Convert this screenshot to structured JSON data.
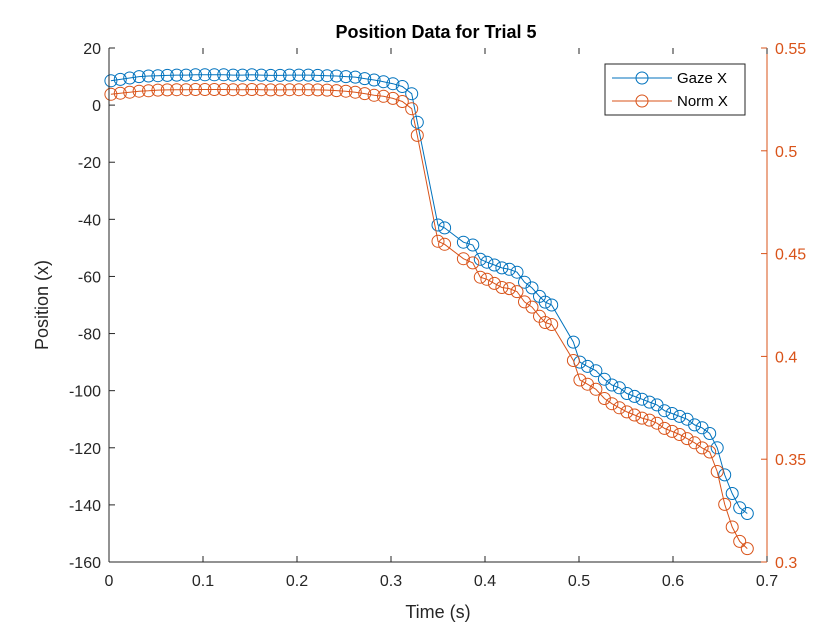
{
  "chart_data": {
    "type": "line",
    "title": "Position Data for Trial 5",
    "xlabel": "Time (s)",
    "ylabel": "Position (x)",
    "y2label": "",
    "xlim": [
      0,
      0.7
    ],
    "ylim": [
      -160,
      20
    ],
    "y2lim": [
      0.3,
      0.55
    ],
    "x_ticks": [
      "0",
      "0.1",
      "0.2",
      "0.3",
      "0.4",
      "0.5",
      "0.6",
      "0.7"
    ],
    "y_ticks": [
      "20",
      "0",
      "-20",
      "-40",
      "-60",
      "-80",
      "-100",
      "-120",
      "-140",
      "-160"
    ],
    "y2_ticks": [
      "0.55",
      "0.5",
      "0.45",
      "0.4",
      "0.35",
      "0.3"
    ],
    "grid": false,
    "legend_position": "top-right",
    "series": [
      {
        "name": "Gaze X",
        "axis": "left",
        "color": "#0072BD",
        "marker": "circle",
        "points": [
          [
            0.002,
            8.5
          ],
          [
            0.012,
            9.0
          ],
          [
            0.022,
            9.5
          ],
          [
            0.032,
            10.0
          ],
          [
            0.042,
            10.2
          ],
          [
            0.052,
            10.3
          ],
          [
            0.062,
            10.4
          ],
          [
            0.072,
            10.5
          ],
          [
            0.082,
            10.5
          ],
          [
            0.092,
            10.6
          ],
          [
            0.102,
            10.6
          ],
          [
            0.112,
            10.6
          ],
          [
            0.122,
            10.6
          ],
          [
            0.132,
            10.5
          ],
          [
            0.142,
            10.5
          ],
          [
            0.152,
            10.6
          ],
          [
            0.162,
            10.5
          ],
          [
            0.172,
            10.4
          ],
          [
            0.182,
            10.4
          ],
          [
            0.192,
            10.5
          ],
          [
            0.202,
            10.5
          ],
          [
            0.212,
            10.5
          ],
          [
            0.222,
            10.4
          ],
          [
            0.232,
            10.3
          ],
          [
            0.242,
            10.2
          ],
          [
            0.252,
            10.0
          ],
          [
            0.262,
            9.8
          ],
          [
            0.272,
            9.3
          ],
          [
            0.282,
            8.8
          ],
          [
            0.292,
            8.2
          ],
          [
            0.302,
            7.5
          ],
          [
            0.312,
            6.5
          ],
          [
            0.322,
            4.0
          ],
          [
            0.328,
            -6.0
          ],
          [
            0.35,
            -42.0
          ],
          [
            0.357,
            -43.0
          ],
          [
            0.377,
            -48.0
          ],
          [
            0.387,
            -49.0
          ],
          [
            0.395,
            -54.0
          ],
          [
            0.402,
            -55.0
          ],
          [
            0.41,
            -56.0
          ],
          [
            0.418,
            -57.0
          ],
          [
            0.426,
            -57.5
          ],
          [
            0.434,
            -58.5
          ],
          [
            0.442,
            -62.0
          ],
          [
            0.45,
            -64.0
          ],
          [
            0.458,
            -67.0
          ],
          [
            0.464,
            -69.0
          ],
          [
            0.471,
            -70.0
          ],
          [
            0.494,
            -83.0
          ],
          [
            0.501,
            -90.0
          ],
          [
            0.509,
            -91.5
          ],
          [
            0.518,
            -93.0
          ],
          [
            0.527,
            -96.0
          ],
          [
            0.535,
            -98.0
          ],
          [
            0.543,
            -99.0
          ],
          [
            0.551,
            -101.0
          ],
          [
            0.559,
            -102.0
          ],
          [
            0.567,
            -103.0
          ],
          [
            0.575,
            -104.0
          ],
          [
            0.583,
            -105.0
          ],
          [
            0.591,
            -107.0
          ],
          [
            0.599,
            -108.0
          ],
          [
            0.607,
            -109.0
          ],
          [
            0.615,
            -110.0
          ],
          [
            0.623,
            -112.0
          ],
          [
            0.631,
            -113.0
          ],
          [
            0.639,
            -115.0
          ],
          [
            0.647,
            -120.0
          ],
          [
            0.655,
            -129.5
          ],
          [
            0.663,
            -136.0
          ],
          [
            0.671,
            -141.0
          ],
          [
            0.679,
            -143.0
          ]
        ]
      },
      {
        "name": "Norm X",
        "axis": "right",
        "color": "#D95319",
        "marker": "circle",
        "points": [
          [
            0.002,
            0.5275
          ],
          [
            0.012,
            0.528
          ],
          [
            0.022,
            0.5285
          ],
          [
            0.032,
            0.529
          ],
          [
            0.042,
            0.5292
          ],
          [
            0.052,
            0.5295
          ],
          [
            0.062,
            0.5296
          ],
          [
            0.072,
            0.5297
          ],
          [
            0.082,
            0.5297
          ],
          [
            0.092,
            0.5298
          ],
          [
            0.102,
            0.5298
          ],
          [
            0.112,
            0.5298
          ],
          [
            0.122,
            0.5298
          ],
          [
            0.132,
            0.5297
          ],
          [
            0.142,
            0.5297
          ],
          [
            0.152,
            0.5298
          ],
          [
            0.162,
            0.5297
          ],
          [
            0.172,
            0.5296
          ],
          [
            0.182,
            0.5296
          ],
          [
            0.192,
            0.5297
          ],
          [
            0.202,
            0.5297
          ],
          [
            0.212,
            0.5297
          ],
          [
            0.222,
            0.5296
          ],
          [
            0.232,
            0.5295
          ],
          [
            0.242,
            0.5293
          ],
          [
            0.252,
            0.529
          ],
          [
            0.262,
            0.5285
          ],
          [
            0.272,
            0.5278
          ],
          [
            0.282,
            0.527
          ],
          [
            0.292,
            0.5265
          ],
          [
            0.302,
            0.5255
          ],
          [
            0.312,
            0.524
          ],
          [
            0.322,
            0.5205
          ],
          [
            0.328,
            0.5075
          ],
          [
            0.35,
            0.456
          ],
          [
            0.357,
            0.4545
          ],
          [
            0.377,
            0.4475
          ],
          [
            0.387,
            0.4455
          ],
          [
            0.395,
            0.4385
          ],
          [
            0.402,
            0.4375
          ],
          [
            0.41,
            0.4355
          ],
          [
            0.418,
            0.4335
          ],
          [
            0.426,
            0.433
          ],
          [
            0.434,
            0.4315
          ],
          [
            0.442,
            0.4265
          ],
          [
            0.45,
            0.424
          ],
          [
            0.458,
            0.4195
          ],
          [
            0.464,
            0.4165
          ],
          [
            0.471,
            0.4155
          ],
          [
            0.494,
            0.398
          ],
          [
            0.501,
            0.3885
          ],
          [
            0.509,
            0.3865
          ],
          [
            0.518,
            0.384
          ],
          [
            0.527,
            0.3795
          ],
          [
            0.535,
            0.377
          ],
          [
            0.543,
            0.375
          ],
          [
            0.551,
            0.373
          ],
          [
            0.559,
            0.3715
          ],
          [
            0.567,
            0.37
          ],
          [
            0.575,
            0.369
          ],
          [
            0.583,
            0.3675
          ],
          [
            0.591,
            0.365
          ],
          [
            0.599,
            0.3635
          ],
          [
            0.607,
            0.362
          ],
          [
            0.615,
            0.36
          ],
          [
            0.623,
            0.358
          ],
          [
            0.631,
            0.3555
          ],
          [
            0.639,
            0.3535
          ],
          [
            0.647,
            0.344
          ],
          [
            0.655,
            0.328
          ],
          [
            0.663,
            0.317
          ],
          [
            0.671,
            0.31
          ],
          [
            0.679,
            0.3065
          ]
        ]
      }
    ]
  }
}
